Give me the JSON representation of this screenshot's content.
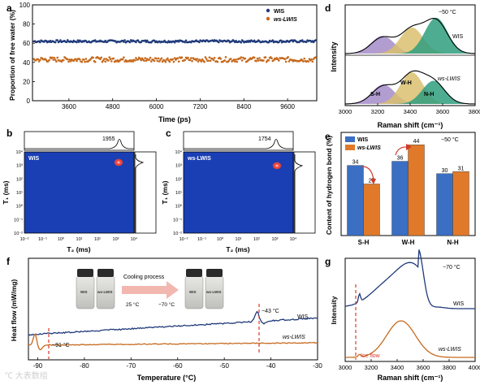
{
  "panels": {
    "a": {
      "letter": "a",
      "xlabel": "Time (ps)",
      "ylabel": "Proportion of free water (%)"
    },
    "b": {
      "letter": "b",
      "ylabel": "T₁ (ms)",
      "xlabel": "T₂ (ms)",
      "label": "WIS",
      "peak": "1955"
    },
    "c": {
      "letter": "c",
      "ylabel": "T₁ (ms)",
      "xlabel": "T₂ (ms)",
      "label": "ws-LWIS",
      "peak": "1754"
    },
    "d": {
      "letter": "d",
      "xlabel": "Raman shift (cm⁻¹)",
      "ylabel": "Intensity",
      "temp": "−50 °C",
      "label_top": "WIS",
      "label_bottom": "ws-LWIS",
      "sh": "S-H",
      "wh": "W-H",
      "nh": "N-H"
    },
    "e": {
      "letter": "e",
      "ylabel": "Content of hydrogen bond (%)",
      "temp": "−50 °C"
    },
    "f": {
      "letter": "f",
      "xlabel": "Temperature (°C)",
      "ylabel": "Heat flow (mW/mg)",
      "ann_91": "−91 °C",
      "ann_43": "−43 °C",
      "series_wis": "WIS",
      "series_ws": "ws-LWIS",
      "cooling": "Cooling process",
      "t_from": "25 °C",
      "t_to": "−70 °C",
      "bottle_wis": "WIS",
      "bottle_ws": "ws-LWIS"
    },
    "g": {
      "letter": "g",
      "xlabel": "Raman shift (cm⁻¹)",
      "ylabel": "Intensity",
      "temp": "−70 °C",
      "label_wis": "WIS",
      "label_ws": "ws-LWIS",
      "ice": "Ice flow"
    }
  },
  "watermark": "℃ 大表数组",
  "chart_data": [
    {
      "panel": "a",
      "type": "scatter",
      "xlabel": "Time (ps)",
      "ylabel": "Proportion of free water (%)",
      "xlim": [
        2600,
        10400
      ],
      "ylim": [
        0,
        100
      ],
      "xticks": [
        3600,
        4800,
        6000,
        7200,
        8400,
        9600
      ],
      "yticks": [
        0,
        20,
        40,
        60,
        80,
        100
      ],
      "series": [
        {
          "name": "WIS",
          "color": "#1f3a7a",
          "mean": 62,
          "spread": 1.2
        },
        {
          "name": "ws-LWIS",
          "color": "#c66a1e",
          "mean": 43,
          "spread": 2.5
        }
      ]
    },
    {
      "panel": "b",
      "type": "heatmap",
      "xlabel": "T₂ (ms)",
      "ylabel": "T₁ (ms)",
      "xticks": [
        "10⁻²",
        "10⁻¹",
        "10⁰",
        "10¹",
        "10²",
        "10³",
        "10⁴"
      ],
      "yticks": [
        "10⁴",
        "10³",
        "10²",
        "10¹",
        "10⁰",
        "10⁻¹",
        "10⁻²"
      ],
      "series_label": "WIS",
      "peak_T2": 1955,
      "background": "#1a3fb5"
    },
    {
      "panel": "c",
      "type": "heatmap",
      "xlabel": "T₂ (ms)",
      "ylabel": "T₁ (ms)",
      "xticks": [
        "10⁻²",
        "10⁻¹",
        "10⁰",
        "10¹",
        "10²",
        "10³",
        "10⁴"
      ],
      "yticks": [
        "10⁴",
        "10³",
        "10²",
        "10¹",
        "10⁰",
        "10⁻¹",
        "10⁻²"
      ],
      "series_label": "ws-LWIS",
      "peak_T2": 1754,
      "background": "#1a3fb5"
    },
    {
      "panel": "d",
      "type": "area",
      "xlabel": "Raman shift (cm⁻¹)",
      "ylabel": "Intensity",
      "xlim": [
        3000,
        3800
      ],
      "xticks": [
        3000,
        3200,
        3400,
        3600,
        3800
      ],
      "components": [
        {
          "name": "S-H",
          "color": "#a58cc9",
          "wis_center": 3230,
          "wis_height": 0.42,
          "ws_center": 3235,
          "ws_height": 0.46
        },
        {
          "name": "W-H",
          "color": "#d9bf6e",
          "wis_center": 3410,
          "wis_height": 0.62,
          "ws_center": 3410,
          "ws_height": 0.75
        },
        {
          "name": "N-H",
          "color": "#2f9d7e",
          "wis_center": 3560,
          "wis_height": 0.85,
          "ws_center": 3545,
          "ws_height": 0.55
        }
      ]
    },
    {
      "panel": "e",
      "type": "bar",
      "ylabel": "Content of hydrogen bond (%)",
      "categories": [
        "S-H",
        "W-H",
        "N-H"
      ],
      "ylim": [
        0,
        50
      ],
      "series": [
        {
          "name": "WIS",
          "color": "#3a6fc4",
          "values": [
            34,
            36,
            30
          ]
        },
        {
          "name": "ws-LWIS",
          "color": "#e07a2a",
          "values": [
            25,
            44,
            31
          ]
        }
      ]
    },
    {
      "panel": "f",
      "type": "line",
      "xlabel": "Temperature (°C)",
      "ylabel": "Heat flow (mW/mg)",
      "xlim": [
        -92,
        -30
      ],
      "xticks": [
        -90,
        -80,
        -70,
        -60,
        -50,
        -40,
        -30
      ],
      "series": [
        {
          "name": "WIS",
          "color": "#1f3a7a"
        },
        {
          "name": "ws-LWIS",
          "color": "#c66a1e"
        }
      ],
      "markers": [
        -91,
        -43
      ]
    },
    {
      "panel": "g",
      "type": "line",
      "xlabel": "Raman shift (cm⁻¹)",
      "ylabel": "Intensity",
      "xlim": [
        3000,
        4000
      ],
      "xticks": [
        3000,
        3200,
        3400,
        3600,
        3800,
        4000
      ],
      "series": [
        {
          "name": "WIS",
          "color": "#1f3a7a"
        },
        {
          "name": "ws-LWIS",
          "color": "#c66a1e"
        }
      ],
      "marker": 3110
    }
  ]
}
